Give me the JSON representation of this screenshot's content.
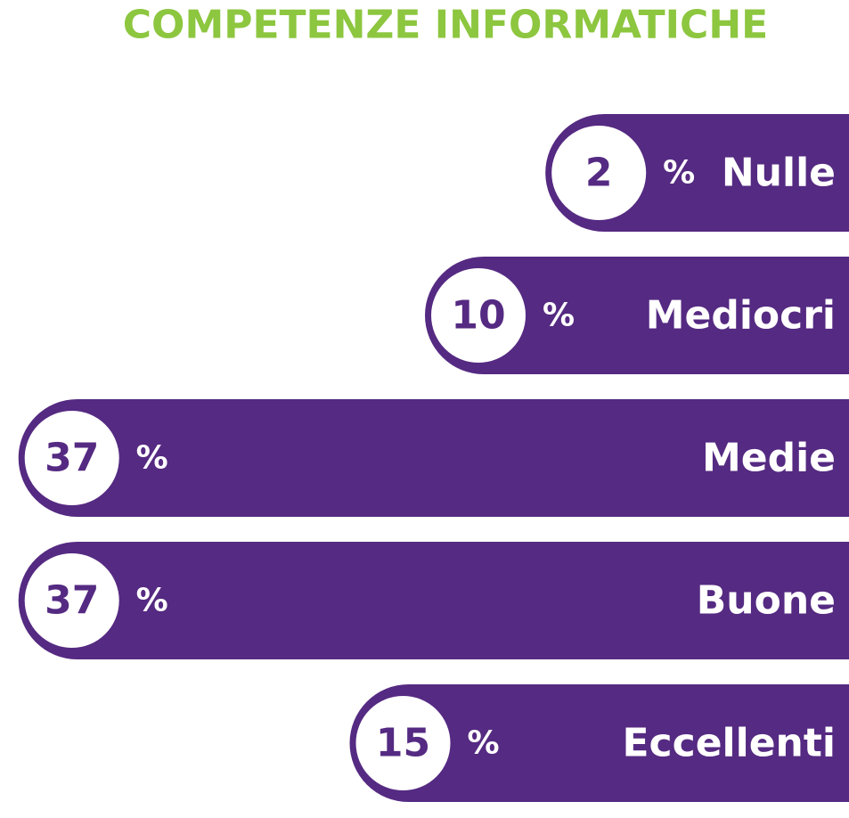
{
  "chart_data": {
    "type": "bar",
    "title": "COMPETENZE INFORMATICHE",
    "categories": [
      "Nulle",
      "Mediocri",
      "Medie",
      "Buone",
      "Eccellenti"
    ],
    "values": [
      2,
      10,
      37,
      37,
      15
    ],
    "value_suffix": "%",
    "color": "#552a82",
    "title_color": "#8dc63f"
  }
}
